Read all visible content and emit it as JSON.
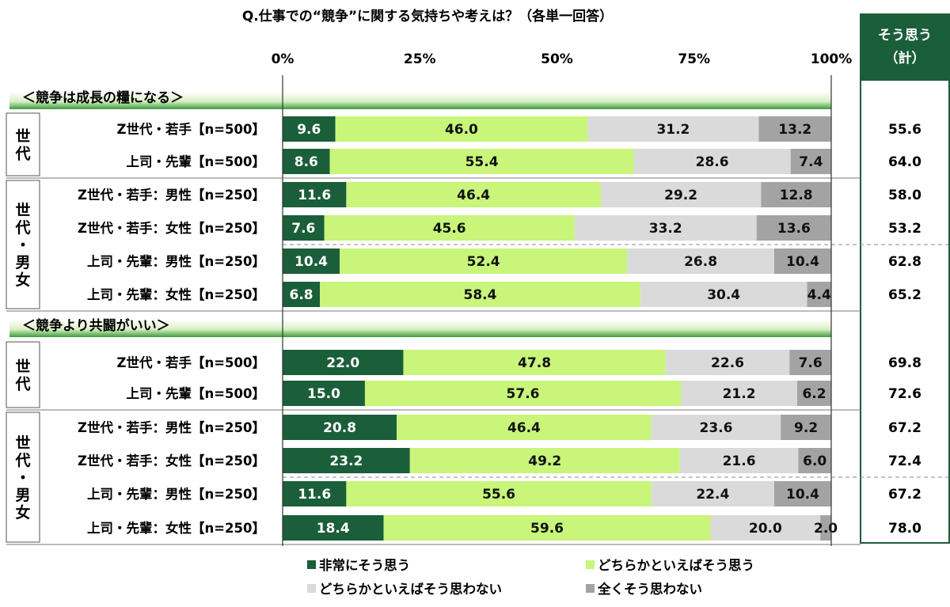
{
  "chart_data": {
    "type": "bar",
    "orientation": "horizontal-stacked-100",
    "title": "Q.仕事での“競争”に関する気持ちや考えは？（各単一回答）",
    "x_ticks": [
      "0%",
      "25%",
      "50%",
      "75%",
      "100%"
    ],
    "xlim": [
      0,
      100
    ],
    "summary_header": [
      "そう思う",
      "（計）"
    ],
    "series": [
      {
        "name": "非常にそう思う",
        "color": "#1b5e3a"
      },
      {
        "name": "どちらかといえばそう思う",
        "color": "#c8f57a"
      },
      {
        "name": "どちらかといえばそう思わない",
        "color": "#dadada"
      },
      {
        "name": "全くそう思わない",
        "color": "#a3a3a3"
      }
    ],
    "sections": [
      {
        "title": "＜競争は成長の糧になる＞",
        "groups": [
          {
            "label": [
              "世",
              "代"
            ],
            "rows": [
              {
                "label": "Z世代・若手【n=500】",
                "values": [
                  9.6,
                  46.0,
                  31.2,
                  13.2
                ],
                "labels": [
                  "9.6",
                  "46.0",
                  "31.2",
                  "13.2"
                ],
                "total": "55.6"
              },
              {
                "label": "上司・先輩【n=500】",
                "values": [
                  8.6,
                  55.4,
                  28.6,
                  7.4
                ],
                "labels": [
                  "8.6",
                  "55.4",
                  "28.6",
                  "7.4"
                ],
                "total": "64.0"
              }
            ]
          },
          {
            "label": [
              "世",
              "代",
              "・",
              "男",
              "女"
            ],
            "rows": [
              {
                "label": "Z世代・若手：男性【n=250】",
                "values": [
                  11.6,
                  46.4,
                  29.2,
                  12.8
                ],
                "labels": [
                  "11.6",
                  "46.4",
                  "29.2",
                  "12.8"
                ],
                "total": "58.0"
              },
              {
                "label": "Z世代・若手：女性【n=250】",
                "values": [
                  7.6,
                  45.6,
                  33.2,
                  13.6
                ],
                "labels": [
                  "7.6",
                  "45.6",
                  "33.2",
                  "13.6"
                ],
                "total": "53.2"
              },
              {
                "label": "上司・先輩：男性【n=250】",
                "values": [
                  10.4,
                  52.4,
                  26.8,
                  10.4
                ],
                "labels": [
                  "10.4",
                  "52.4",
                  "26.8",
                  "10.4"
                ],
                "total": "62.8"
              },
              {
                "label": "上司・先輩：女性【n=250】",
                "values": [
                  6.8,
                  58.4,
                  30.4,
                  4.4
                ],
                "labels": [
                  "6.8",
                  "58.4",
                  "30.4",
                  "4.4"
                ],
                "total": "65.2"
              }
            ]
          }
        ]
      },
      {
        "title": "＜競争より共闘がいい＞",
        "groups": [
          {
            "label": [
              "世",
              "代"
            ],
            "rows": [
              {
                "label": "Z世代・若手【n=500】",
                "values": [
                  22.0,
                  47.8,
                  22.6,
                  7.6
                ],
                "labels": [
                  "22.0",
                  "47.8",
                  "22.6",
                  "7.6"
                ],
                "total": "69.8"
              },
              {
                "label": "上司・先輩【n=500】",
                "values": [
                  15.0,
                  57.6,
                  21.2,
                  6.2
                ],
                "labels": [
                  "15.0",
                  "57.6",
                  "21.2",
                  "6.2"
                ],
                "total": "72.6"
              }
            ]
          },
          {
            "label": [
              "世",
              "代",
              "・",
              "男",
              "女"
            ],
            "rows": [
              {
                "label": "Z世代・若手：男性【n=250】",
                "values": [
                  20.8,
                  46.4,
                  23.6,
                  9.2
                ],
                "labels": [
                  "20.8",
                  "46.4",
                  "23.6",
                  "9.2"
                ],
                "total": "67.2"
              },
              {
                "label": "Z世代・若手：女性【n=250】",
                "values": [
                  23.2,
                  49.2,
                  21.6,
                  6.0
                ],
                "labels": [
                  "23.2",
                  "49.2",
                  "21.6",
                  "6.0"
                ],
                "total": "72.4"
              },
              {
                "label": "上司・先輩：男性【n=250】",
                "values": [
                  11.6,
                  55.6,
                  22.4,
                  10.4
                ],
                "labels": [
                  "11.6",
                  "55.6",
                  "22.4",
                  "10.4"
                ],
                "total": "67.2"
              },
              {
                "label": "上司・先輩：女性【n=250】",
                "values": [
                  18.4,
                  59.6,
                  20.0,
                  2.0
                ],
                "labels": [
                  "18.4",
                  "59.6",
                  "20.0",
                  "2.0"
                ],
                "total": "78.0"
              }
            ]
          }
        ]
      }
    ]
  }
}
